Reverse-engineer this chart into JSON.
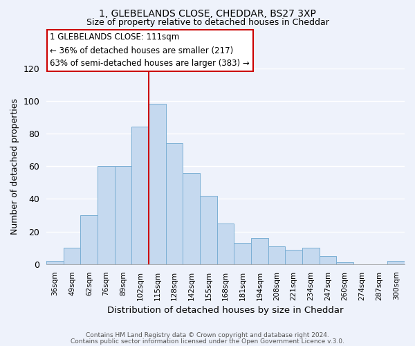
{
  "title1": "1, GLEBELANDS CLOSE, CHEDDAR, BS27 3XP",
  "title2": "Size of property relative to detached houses in Cheddar",
  "xlabel": "Distribution of detached houses by size in Cheddar",
  "ylabel": "Number of detached properties",
  "bin_labels": [
    "36sqm",
    "49sqm",
    "62sqm",
    "76sqm",
    "89sqm",
    "102sqm",
    "115sqm",
    "128sqm",
    "142sqm",
    "155sqm",
    "168sqm",
    "181sqm",
    "194sqm",
    "208sqm",
    "221sqm",
    "234sqm",
    "247sqm",
    "260sqm",
    "274sqm",
    "287sqm",
    "300sqm"
  ],
  "bar_heights": [
    2,
    10,
    30,
    60,
    60,
    84,
    98,
    74,
    56,
    42,
    25,
    13,
    16,
    11,
    9,
    10,
    5,
    1,
    0,
    0,
    2
  ],
  "bar_color": "#c5d9ef",
  "bar_edge_color": "#7bafd4",
  "vline_x": 6,
  "vline_color": "#cc0000",
  "annotation_title": "1 GLEBELANDS CLOSE: 111sqm",
  "annotation_line1": "← 36% of detached houses are smaller (217)",
  "annotation_line2": "63% of semi-detached houses are larger (383) →",
  "annotation_box_color": "#ffffff",
  "annotation_box_edge": "#cc0000",
  "footer1": "Contains HM Land Registry data © Crown copyright and database right 2024.",
  "footer2": "Contains public sector information licensed under the Open Government Licence v.3.0.",
  "ylim": [
    0,
    120
  ],
  "background_color": "#eef2fb",
  "grid_color": "#ffffff",
  "yticks": [
    0,
    20,
    40,
    60,
    80,
    100,
    120
  ]
}
